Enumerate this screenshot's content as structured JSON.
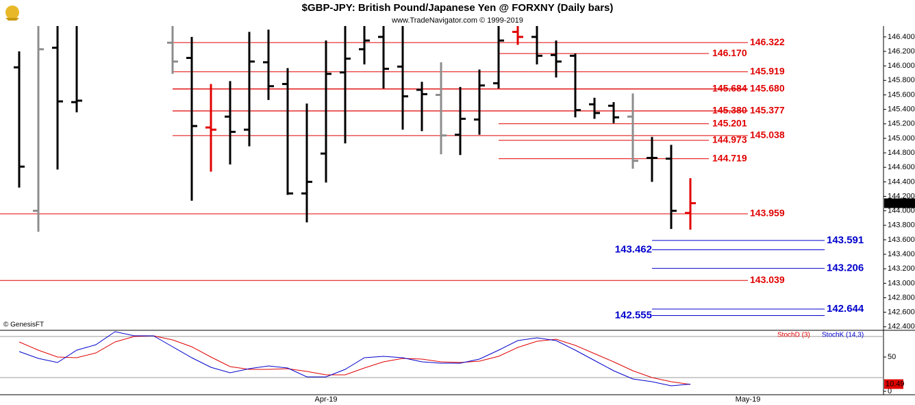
{
  "chart_data": [
    {
      "type": "ohlc",
      "title": "$GBP-JPY:  British Pound/Japanese Yen @ FORXNY  (Daily bars)",
      "subtitle": "www.TradeNavigator.com © 1999-2019",
      "credit": "© GenesisFT",
      "categories": [
        null,
        null,
        null,
        null,
        null,
        null,
        null,
        null,
        null,
        null,
        null,
        null,
        null,
        null,
        null,
        null,
        "Apr-19",
        null,
        null,
        null,
        null,
        null,
        null,
        null,
        null,
        null,
        null,
        null,
        null,
        null,
        null,
        null,
        null,
        null,
        null,
        null,
        null,
        null,
        "May-19",
        null,
        null,
        null,
        null,
        null,
        null,
        null
      ],
      "open": [
        145.98,
        144.0,
        146.25,
        145.5,
        null,
        null,
        null,
        null,
        146.32,
        146.11,
        145.15,
        145.3,
        145.12,
        146.05,
        145.75,
        144.24,
        144.79,
        145.91,
        146.23,
        146.4,
        145.99,
        145.67,
        145.6,
        145.05,
        145.26,
        145.76,
        146.47,
        146.4,
        146.15,
        146.14,
        145.47,
        145.45,
        145.3,
        144.73,
        144.72,
        143.97,
        null,
        null,
        null,
        null,
        null,
        null,
        null,
        null,
        null,
        null
      ],
      "high": [
        146.2,
        146.7,
        146.7,
        146.7,
        null,
        null,
        null,
        null,
        146.7,
        146.4,
        145.75,
        145.79,
        146.47,
        146.5,
        145.97,
        145.48,
        146.35,
        146.55,
        146.7,
        146.7,
        146.7,
        145.78,
        146.05,
        145.71,
        145.95,
        146.7,
        146.6,
        146.7,
        146.35,
        146.17,
        145.56,
        145.5,
        145.62,
        145.02,
        144.91,
        144.45,
        null,
        null,
        null,
        null,
        null,
        null,
        null,
        null,
        null,
        null
      ],
      "low": [
        144.32,
        143.71,
        144.57,
        145.36,
        null,
        null,
        null,
        null,
        145.89,
        144.14,
        144.54,
        144.64,
        144.89,
        145.53,
        144.22,
        143.84,
        144.39,
        144.93,
        146.02,
        145.69,
        145.12,
        145.1,
        144.78,
        144.77,
        145.05,
        145.69,
        146.29,
        146.02,
        145.84,
        145.29,
        145.27,
        145.21,
        144.58,
        144.4,
        143.75,
        143.74,
        null,
        null,
        null,
        null,
        null,
        null,
        null,
        null,
        null,
        null
      ],
      "close": [
        144.61,
        146.23,
        145.51,
        145.52,
        null,
        null,
        null,
        null,
        146.06,
        145.17,
        145.12,
        145.09,
        146.06,
        145.72,
        144.24,
        144.4,
        145.89,
        146.1,
        146.35,
        145.96,
        145.58,
        145.61,
        145.04,
        145.27,
        145.73,
        146.35,
        146.4,
        146.14,
        146.06,
        145.39,
        145.35,
        145.29,
        144.69,
        144.73,
        144.0,
        144.105,
        null,
        null,
        null,
        null,
        null,
        null,
        null,
        null,
        null,
        null
      ],
      "bar_colors": [
        "#000000",
        "#8c8c8c",
        "#000000",
        "#000000",
        null,
        null,
        null,
        null,
        "#8c8c8c",
        "#000000",
        "#e00000",
        "#000000",
        "#000000",
        "#000000",
        "#000000",
        "#000000",
        "#000000",
        "#000000",
        "#000000",
        "#000000",
        "#000000",
        "#000000",
        "#8c8c8c",
        "#000000",
        "#000000",
        "#000000",
        "#e00000",
        "#000000",
        "#000000",
        "#000000",
        "#000000",
        "#000000",
        "#8c8c8c",
        "#000000",
        "#000000",
        "#e00000",
        null,
        null,
        null,
        null,
        null,
        null,
        null,
        null,
        null,
        null
      ],
      "ylim": [
        142.37,
        146.55
      ],
      "yticks": [
        {
          "value": 142.4,
          "label": "142.400"
        },
        {
          "value": 142.6,
          "label": "142.600"
        },
        {
          "value": 142.8,
          "label": "142.800"
        },
        {
          "value": 143.0,
          "label": "143.000"
        },
        {
          "value": 143.2,
          "label": "143.200"
        },
        {
          "value": 143.4,
          "label": "143.400"
        },
        {
          "value": 143.6,
          "label": "143.600"
        },
        {
          "value": 143.8,
          "label": "143.800"
        },
        {
          "value": 144.0,
          "label": "144.000"
        },
        {
          "value": 144.2,
          "label": "144.200"
        },
        {
          "value": 144.4,
          "label": "144.400"
        },
        {
          "value": 144.6,
          "label": "144.600"
        },
        {
          "value": 144.8,
          "label": "144.800"
        },
        {
          "value": 145.0,
          "label": "145.000"
        },
        {
          "value": 145.2,
          "label": "145.200"
        },
        {
          "value": 145.4,
          "label": "145.400"
        },
        {
          "value": 145.6,
          "label": "145.600"
        },
        {
          "value": 145.8,
          "label": "145.800"
        },
        {
          "value": 146.0,
          "label": "146.000"
        },
        {
          "value": 146.2,
          "label": "146.200"
        },
        {
          "value": 146.4,
          "label": "146.400"
        }
      ],
      "levels": [
        {
          "value": 146.322,
          "label": "146.322",
          "color": "#e00000"
        },
        {
          "value": 146.17,
          "label": "146.170",
          "color": "#e00000"
        },
        {
          "value": 145.919,
          "label": "145.919",
          "color": "#e00000"
        },
        {
          "value": 145.684,
          "label": "145.684",
          "color": "#e00000"
        },
        {
          "value": 145.68,
          "label": "145.680",
          "color": "#e00000"
        },
        {
          "value": 145.38,
          "label": "145.380",
          "color": "#e00000"
        },
        {
          "value": 145.377,
          "label": "145.377",
          "color": "#e00000"
        },
        {
          "value": 145.201,
          "label": "145.201",
          "color": "#e00000"
        },
        {
          "value": 145.038,
          "label": "145.038",
          "color": "#e00000"
        },
        {
          "value": 144.973,
          "label": "144.973",
          "color": "#e00000"
        },
        {
          "value": 144.719,
          "label": "144.719",
          "color": "#e00000"
        },
        {
          "value": 143.959,
          "label": "143.959",
          "color": "#e00000"
        },
        {
          "value": 143.039,
          "label": "143.039",
          "color": "#e00000"
        },
        {
          "value": 143.591,
          "label": "143.591",
          "color": "#0000cc"
        },
        {
          "value": 143.462,
          "label": "143.462",
          "color": "#0000cc"
        },
        {
          "value": 143.206,
          "label": "143.206",
          "color": "#0000cc"
        },
        {
          "value": 142.644,
          "label": "142.644",
          "color": "#0000cc"
        },
        {
          "value": 142.555,
          "label": "142.555",
          "color": "#0000cc"
        }
      ]
    },
    {
      "type": "line",
      "series": [
        {
          "name": "StochD (3)",
          "color": "#e00000",
          "values": [
            72,
            60,
            50,
            49,
            56,
            72,
            80,
            81,
            75,
            65,
            50,
            36,
            32,
            32,
            33,
            29,
            24,
            24,
            34,
            43,
            48,
            47,
            43,
            42,
            44,
            51,
            64,
            73,
            76,
            67,
            55,
            43,
            30,
            20,
            14,
            10,
            null,
            null,
            null,
            null,
            null,
            null,
            null,
            null,
            null,
            null
          ]
        },
        {
          "name": "StochK (14,3)",
          "color": "#0000cc",
          "values": [
            58,
            48,
            42,
            60,
            68,
            87,
            81,
            81,
            65,
            49,
            35,
            27,
            33,
            37,
            34,
            21,
            21,
            32,
            49,
            51,
            49,
            43,
            41,
            41,
            47,
            60,
            74,
            78,
            74,
            60,
            45,
            30,
            18,
            14,
            8,
            10.49,
            null,
            null,
            null,
            null,
            null,
            null,
            null,
            null,
            null,
            null
          ]
        }
      ],
      "ylim": [
        -5,
        88
      ],
      "yticks": [
        0,
        50
      ],
      "ref_lines": [
        20,
        80
      ]
    }
  ]
}
